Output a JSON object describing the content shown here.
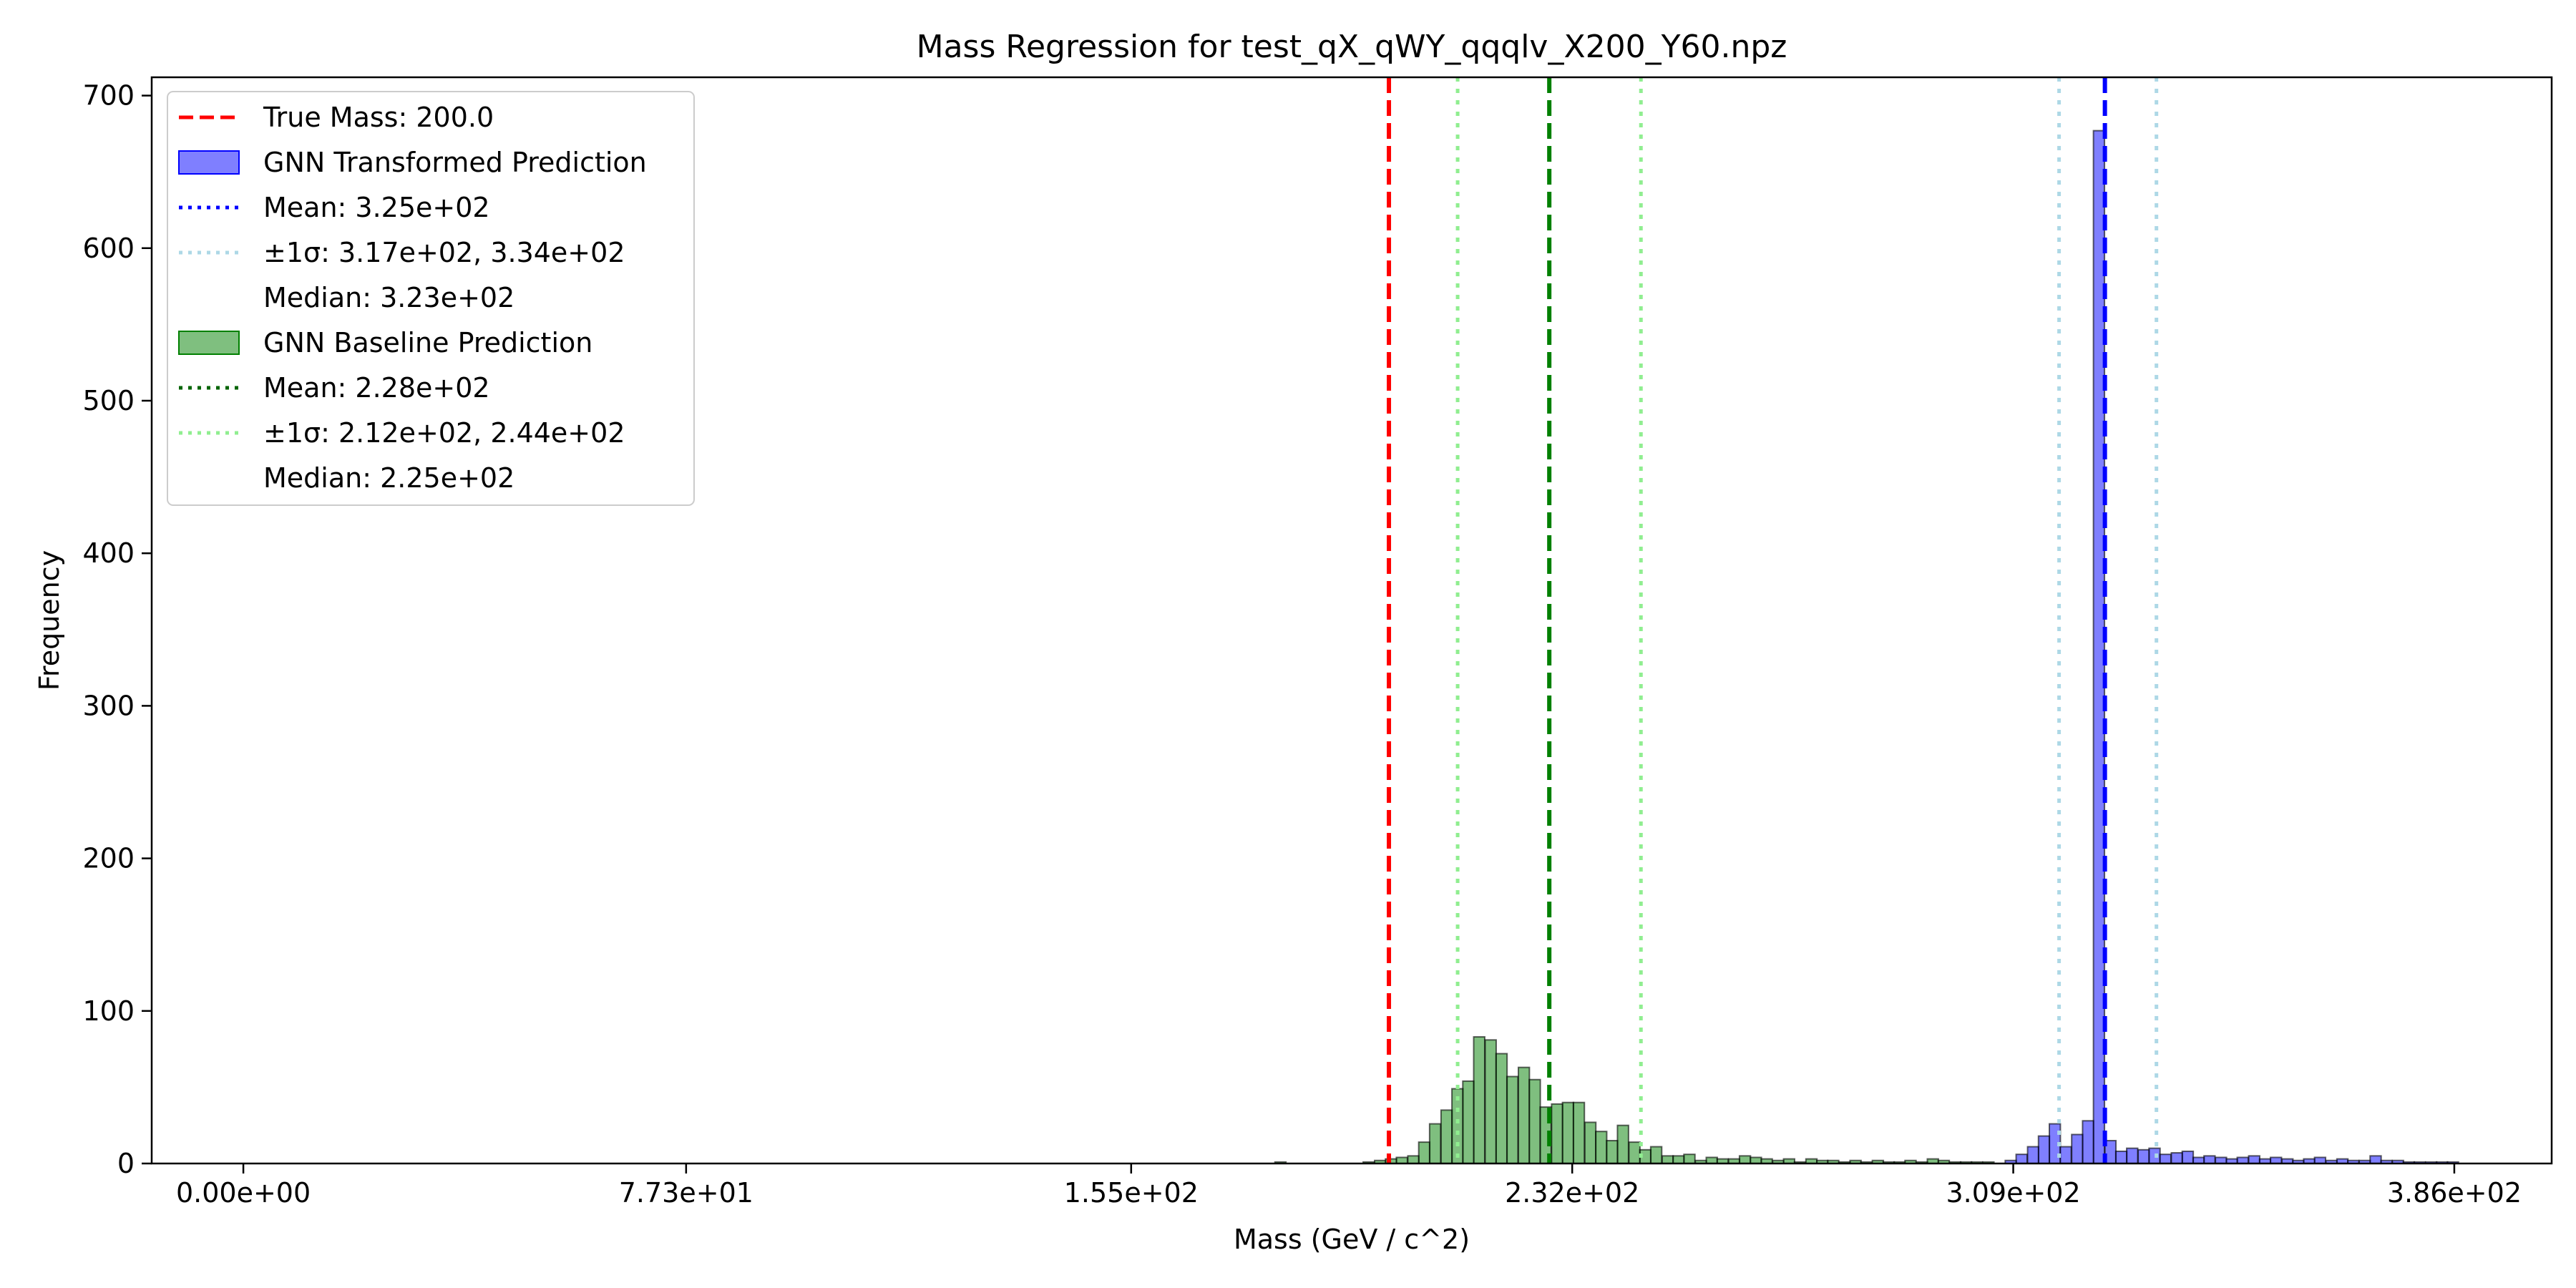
{
  "chart_data": {
    "type": "bar",
    "title": "Mass Regression for test_qX_qWY_qqqlv_X200_Y60.npz",
    "xlabel": "Mass (GeV / c^2)",
    "ylabel": "Frequency",
    "xlim": [
      -16,
      403
    ],
    "ylim": [
      0,
      712
    ],
    "x_ticks": [
      0,
      77.3,
      155,
      232,
      309,
      386
    ],
    "x_tick_labels": [
      "0.00e+00",
      "7.73e+01",
      "1.55e+02",
      "2.32e+02",
      "3.09e+02",
      "3.86e+02"
    ],
    "y_ticks": [
      0,
      100,
      200,
      300,
      400,
      500,
      600,
      700
    ],
    "y_tick_labels": [
      "0",
      "100",
      "200",
      "300",
      "400",
      "500",
      "600",
      "700"
    ],
    "legend_position": "top-left",
    "legend": [
      {
        "kind": "dashed",
        "color": "#ff0000",
        "label": "True Mass: 200.0"
      },
      {
        "kind": "patch",
        "color": "#0000ff",
        "label": "GNN Transformed Prediction"
      },
      {
        "kind": "dotted",
        "color": "#0000ff",
        "label": "Mean: 3.25e+02"
      },
      {
        "kind": "dotted",
        "color": "#add8e6",
        "label": "±1σ: 3.17e+02, 3.34e+02"
      },
      {
        "kind": "none",
        "color": "",
        "label": "Median: 3.23e+02"
      },
      {
        "kind": "patch",
        "color": "#008000",
        "label": "GNN Baseline Prediction"
      },
      {
        "kind": "dotted",
        "color": "#006400",
        "label": "Mean: 2.28e+02"
      },
      {
        "kind": "dotted",
        "color": "#90ee90",
        "label": "±1σ: 2.12e+02, 2.44e+02"
      },
      {
        "kind": "none",
        "color": "",
        "label": "Median: 2.25e+02"
      }
    ],
    "vlines": [
      {
        "x": 200.0,
        "color": "#ff0000",
        "style": "dashed"
      },
      {
        "x": 228,
        "color": "#008000",
        "style": "dashed"
      },
      {
        "x": 212,
        "color": "#90ee90",
        "style": "dotted"
      },
      {
        "x": 244,
        "color": "#90ee90",
        "style": "dotted"
      },
      {
        "x": 325,
        "color": "#0000ff",
        "style": "dashed"
      },
      {
        "x": 317,
        "color": "#add8e6",
        "style": "dotted"
      },
      {
        "x": 334,
        "color": "#add8e6",
        "style": "dotted"
      }
    ],
    "series": [
      {
        "name": "GNN Baseline Prediction",
        "color": "#008000",
        "bin_width": 1.93,
        "bins": [
          [
            180.1,
            1
          ],
          [
            182.0,
            0
          ],
          [
            184.0,
            0
          ],
          [
            185.9,
            0
          ],
          [
            187.8,
            0
          ],
          [
            189.7,
            0
          ],
          [
            191.7,
            0
          ],
          [
            193.6,
            0
          ],
          [
            195.5,
            1
          ],
          [
            197.5,
            2
          ],
          [
            199.4,
            3
          ],
          [
            201.3,
            4
          ],
          [
            203.3,
            5
          ],
          [
            205.2,
            14
          ],
          [
            207.1,
            26
          ],
          [
            209.1,
            35
          ],
          [
            211.0,
            49
          ],
          [
            212.9,
            54
          ],
          [
            214.8,
            83
          ],
          [
            216.8,
            81
          ],
          [
            218.7,
            72
          ],
          [
            220.6,
            57
          ],
          [
            222.6,
            63
          ],
          [
            224.5,
            55
          ],
          [
            226.4,
            37
          ],
          [
            228.4,
            39
          ],
          [
            230.3,
            40
          ],
          [
            232.2,
            40
          ],
          [
            234.2,
            27
          ],
          [
            236.1,
            21
          ],
          [
            238.0,
            15
          ],
          [
            239.9,
            25
          ],
          [
            241.9,
            14
          ],
          [
            243.8,
            9
          ],
          [
            245.7,
            11
          ],
          [
            247.7,
            5
          ],
          [
            249.6,
            5
          ],
          [
            251.5,
            6
          ],
          [
            253.5,
            2
          ],
          [
            255.4,
            4
          ],
          [
            257.3,
            3
          ],
          [
            259.3,
            3
          ],
          [
            261.2,
            5
          ],
          [
            263.1,
            4
          ],
          [
            265.0,
            3
          ],
          [
            267.0,
            2
          ],
          [
            268.9,
            3
          ],
          [
            270.8,
            1
          ],
          [
            272.8,
            3
          ],
          [
            274.7,
            2
          ],
          [
            276.6,
            2
          ],
          [
            278.6,
            1
          ],
          [
            280.5,
            2
          ],
          [
            282.4,
            1
          ],
          [
            284.4,
            2
          ],
          [
            286.3,
            1
          ],
          [
            288.2,
            1
          ],
          [
            290.1,
            2
          ],
          [
            292.1,
            1
          ],
          [
            294.0,
            3
          ],
          [
            295.9,
            2
          ],
          [
            297.9,
            1
          ],
          [
            299.8,
            1
          ],
          [
            301.7,
            1
          ],
          [
            303.7,
            1
          ]
        ]
      },
      {
        "name": "GNN Transformed Prediction",
        "color": "#0000ff",
        "bin_width": 1.93,
        "bins": [
          [
            307.6,
            2
          ],
          [
            309.5,
            6
          ],
          [
            311.5,
            11
          ],
          [
            313.4,
            18
          ],
          [
            315.3,
            26
          ],
          [
            317.2,
            11
          ],
          [
            319.2,
            19
          ],
          [
            321.1,
            28
          ],
          [
            323.0,
            677
          ],
          [
            325.0,
            15
          ],
          [
            326.9,
            8
          ],
          [
            328.8,
            10
          ],
          [
            330.8,
            9
          ],
          [
            332.7,
            10
          ],
          [
            334.6,
            6
          ],
          [
            336.6,
            7
          ],
          [
            338.5,
            8
          ],
          [
            340.4,
            4
          ],
          [
            342.3,
            5
          ],
          [
            344.3,
            4
          ],
          [
            346.2,
            3
          ],
          [
            348.1,
            4
          ],
          [
            350.1,
            5
          ],
          [
            352.0,
            3
          ],
          [
            353.9,
            4
          ],
          [
            355.9,
            3
          ],
          [
            357.8,
            2
          ],
          [
            359.7,
            3
          ],
          [
            361.6,
            4
          ],
          [
            363.6,
            2
          ],
          [
            365.5,
            3
          ],
          [
            367.4,
            2
          ],
          [
            369.4,
            2
          ],
          [
            371.3,
            5
          ],
          [
            373.2,
            2
          ],
          [
            375.2,
            2
          ],
          [
            377.1,
            1
          ],
          [
            379.0,
            1
          ],
          [
            381.0,
            1
          ],
          [
            382.9,
            1
          ],
          [
            384.8,
            1
          ]
        ]
      }
    ]
  }
}
